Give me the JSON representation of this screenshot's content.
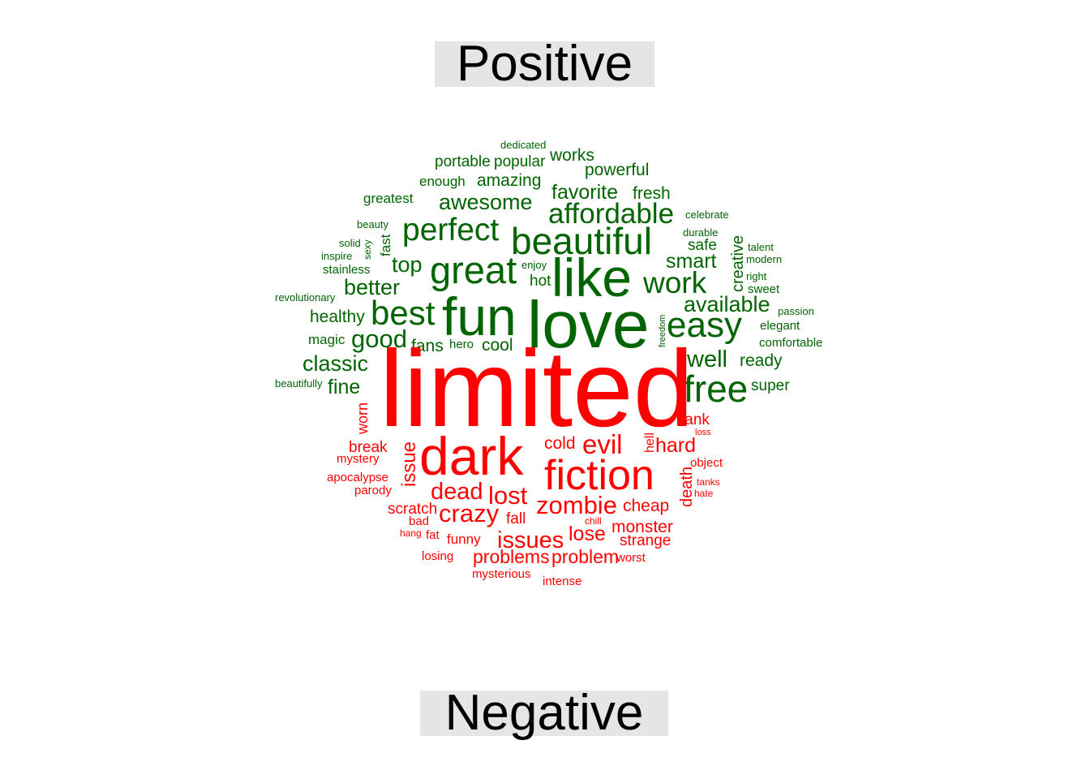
{
  "labels": {
    "positive": "Positive",
    "negative": "Negative"
  },
  "colors": {
    "positive": "#006400",
    "negative": "#ff0000",
    "label_bg": "#e5e5e5"
  },
  "words": {
    "positive": [
      "dedicated",
      "works",
      "portable",
      "popular",
      "powerful",
      "amazing",
      "enough",
      "favorite",
      "fresh",
      "greatest",
      "awesome",
      "affordable",
      "celebrate",
      "beauty",
      "perfect",
      "durable",
      "beautiful",
      "solid",
      "sexy",
      "fast",
      "creative",
      "safe",
      "talent",
      "inspire",
      "modern",
      "stainless",
      "top",
      "enjoy",
      "smart",
      "great",
      "like",
      "right",
      "hot",
      "work",
      "better",
      "sweet",
      "revolutionary",
      "available",
      "best",
      "fun",
      "love",
      "passion",
      "healthy",
      "freedom",
      "easy",
      "elegant",
      "magic",
      "good",
      "fans",
      "hero",
      "cool",
      "comfortable",
      "classic",
      "well",
      "ready",
      "beautifully",
      "fine",
      "free",
      "super"
    ],
    "negative": [
      "limited",
      "worn",
      "tank",
      "loss",
      "break",
      "issue",
      "cold",
      "evil",
      "hell",
      "hard",
      "mystery",
      "dark",
      "object",
      "death",
      "fiction",
      "apocalypse",
      "tanks",
      "parody",
      "dead",
      "hate",
      "lost",
      "cheap",
      "scratch",
      "zombie",
      "crazy",
      "bad",
      "fall",
      "chill",
      "monster",
      "hang",
      "fat",
      "funny",
      "issues",
      "lose",
      "strange",
      "losing",
      "problems",
      "problem",
      "worst",
      "mysterious",
      "intense"
    ]
  }
}
